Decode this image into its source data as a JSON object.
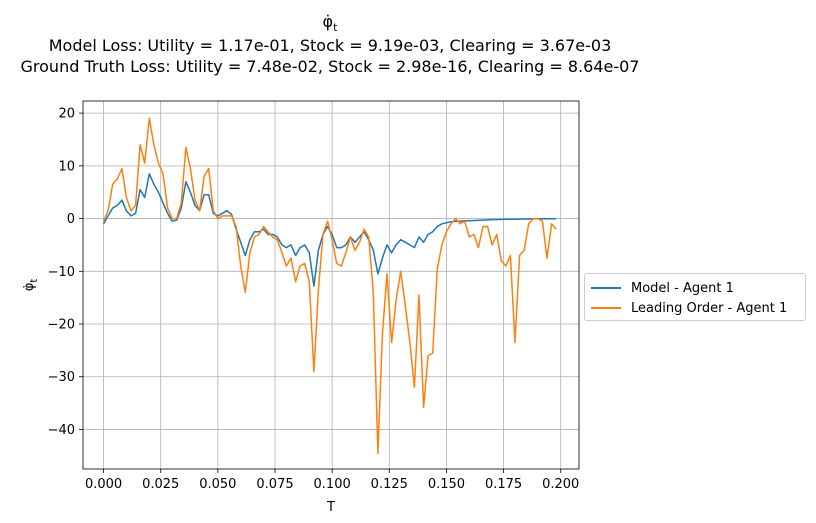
{
  "title": {
    "symbol": "φ̇",
    "subscript": "t",
    "model_loss": "Model Loss: Utility = 1.17e-01, Stock = 9.19e-03, Clearing = 3.67e-03",
    "ground_truth_loss": "Ground Truth Loss: Utility = 7.48e-02, Stock = 2.98e-16, Clearing = 8.64e-07"
  },
  "colors": {
    "model": "#1f77b4",
    "leading": "#ff7f0e",
    "grid": "#b0b0b0"
  },
  "chart_data": {
    "type": "line",
    "xlabel": "T",
    "ylabel_symbol": "φ̇",
    "ylabel_subscript": "t",
    "xlim": [
      -0.009,
      0.208
    ],
    "ylim": [
      -47.5,
      22.3
    ],
    "xticks": [
      0.0,
      0.025,
      0.05,
      0.075,
      0.1,
      0.125,
      0.15,
      0.175,
      0.2
    ],
    "xtick_labels": [
      "0.000",
      "0.025",
      "0.050",
      "0.075",
      "0.100",
      "0.125",
      "0.150",
      "0.175",
      "0.200"
    ],
    "yticks": [
      20,
      10,
      0,
      -10,
      -20,
      -30,
      -40
    ],
    "ytick_labels": [
      "20",
      "10",
      "0",
      "−10",
      "−20",
      "−30",
      "−40"
    ],
    "grid": true,
    "legend_position": "center-left-outside",
    "series": [
      {
        "name": "Model - Agent 1",
        "x": [
          0.0,
          0.002,
          0.004,
          0.006,
          0.008,
          0.01,
          0.012,
          0.014,
          0.016,
          0.018,
          0.02,
          0.022,
          0.024,
          0.026,
          0.028,
          0.03,
          0.032,
          0.034,
          0.036,
          0.038,
          0.04,
          0.042,
          0.044,
          0.046,
          0.048,
          0.05,
          0.052,
          0.054,
          0.056,
          0.058,
          0.06,
          0.062,
          0.064,
          0.066,
          0.068,
          0.07,
          0.072,
          0.074,
          0.076,
          0.078,
          0.08,
          0.082,
          0.084,
          0.086,
          0.088,
          0.09,
          0.092,
          0.094,
          0.096,
          0.098,
          0.1,
          0.102,
          0.104,
          0.106,
          0.108,
          0.11,
          0.112,
          0.114,
          0.116,
          0.118,
          0.12,
          0.122,
          0.124,
          0.126,
          0.128,
          0.13,
          0.132,
          0.134,
          0.136,
          0.138,
          0.14,
          0.142,
          0.144,
          0.146,
          0.148,
          0.15,
          0.152,
          0.154,
          0.156,
          0.158,
          0.16,
          0.165,
          0.17,
          0.175,
          0.18,
          0.185,
          0.19,
          0.195,
          0.198
        ],
        "y": [
          -1.0,
          0.5,
          2.0,
          2.5,
          3.5,
          1.5,
          0.5,
          1.0,
          5.5,
          4.0,
          8.5,
          6.5,
          5.0,
          3.0,
          1.0,
          -0.5,
          -0.3,
          2.0,
          7.0,
          5.0,
          2.5,
          1.5,
          4.5,
          4.5,
          1.0,
          0.5,
          1.0,
          1.5,
          0.8,
          -2.0,
          -4.5,
          -7.0,
          -4.0,
          -2.5,
          -2.5,
          -2.0,
          -3.0,
          -3.0,
          -3.5,
          -5.0,
          -5.5,
          -5.0,
          -7.0,
          -5.5,
          -5.0,
          -6.5,
          -12.8,
          -6.0,
          -3.0,
          -1.5,
          -3.0,
          -5.5,
          -5.5,
          -5.0,
          -3.5,
          -4.5,
          -3.5,
          -2.5,
          -4.0,
          -6.0,
          -10.5,
          -7.5,
          -5.0,
          -6.5,
          -5.0,
          -4.0,
          -4.5,
          -5.0,
          -5.5,
          -3.5,
          -4.5,
          -3.0,
          -2.5,
          -1.5,
          -1.0,
          -0.8,
          -0.6,
          -0.5,
          -0.5,
          -0.4,
          -0.4,
          -0.3,
          -0.2,
          -0.15,
          -0.1,
          -0.08,
          -0.05,
          -0.05,
          -0.05
        ]
      },
      {
        "name": "Leading Order - Agent 1",
        "x": [
          0.0,
          0.002,
          0.004,
          0.006,
          0.008,
          0.01,
          0.012,
          0.014,
          0.016,
          0.018,
          0.02,
          0.022,
          0.024,
          0.026,
          0.028,
          0.03,
          0.032,
          0.034,
          0.036,
          0.038,
          0.04,
          0.042,
          0.044,
          0.046,
          0.048,
          0.05,
          0.052,
          0.054,
          0.056,
          0.058,
          0.06,
          0.062,
          0.064,
          0.066,
          0.068,
          0.07,
          0.072,
          0.074,
          0.076,
          0.078,
          0.08,
          0.082,
          0.084,
          0.086,
          0.088,
          0.09,
          0.092,
          0.094,
          0.096,
          0.098,
          0.1,
          0.102,
          0.104,
          0.106,
          0.108,
          0.11,
          0.112,
          0.114,
          0.116,
          0.118,
          0.12,
          0.122,
          0.124,
          0.126,
          0.128,
          0.13,
          0.132,
          0.134,
          0.136,
          0.138,
          0.14,
          0.142,
          0.144,
          0.146,
          0.148,
          0.15,
          0.152,
          0.154,
          0.156,
          0.158,
          0.16,
          0.162,
          0.164,
          0.166,
          0.168,
          0.17,
          0.172,
          0.174,
          0.176,
          0.178,
          0.18,
          0.182,
          0.184,
          0.186,
          0.188,
          0.19,
          0.192,
          0.194,
          0.196,
          0.198
        ],
        "y": [
          -0.5,
          1.5,
          6.5,
          7.5,
          9.5,
          4.0,
          1.5,
          2.5,
          14.0,
          10.5,
          19.0,
          14.0,
          10.5,
          8.5,
          2.0,
          0.0,
          0.0,
          3.0,
          13.5,
          9.5,
          3.5,
          1.5,
          8.0,
          9.5,
          1.5,
          0.0,
          0.5,
          0.5,
          0.5,
          -1.5,
          -9.0,
          -14.0,
          -6.5,
          -3.5,
          -3.0,
          -1.5,
          -2.5,
          -3.5,
          -4.0,
          -6.5,
          -9.0,
          -7.5,
          -12.0,
          -9.0,
          -8.5,
          -12.0,
          -29.0,
          -13.5,
          -3.0,
          -0.5,
          -4.0,
          -8.5,
          -9.0,
          -6.5,
          -3.5,
          -6.0,
          -4.5,
          -2.0,
          -3.5,
          -14.0,
          -44.5,
          -22.0,
          -10.5,
          -23.5,
          -15.5,
          -10.0,
          -16.5,
          -23.5,
          -32.0,
          -14.5,
          -35.8,
          -26.0,
          -25.5,
          -9.5,
          -5.0,
          -2.5,
          -1.0,
          0.0,
          -1.0,
          -0.5,
          -3.5,
          -3.0,
          -5.5,
          -1.5,
          -1.5,
          -5.0,
          -3.0,
          -8.0,
          -9.0,
          -7.0,
          -23.5,
          -7.0,
          -6.0,
          -1.0,
          0.0,
          0.0,
          -0.5,
          -7.5,
          -1.0,
          -2.0
        ]
      }
    ]
  }
}
